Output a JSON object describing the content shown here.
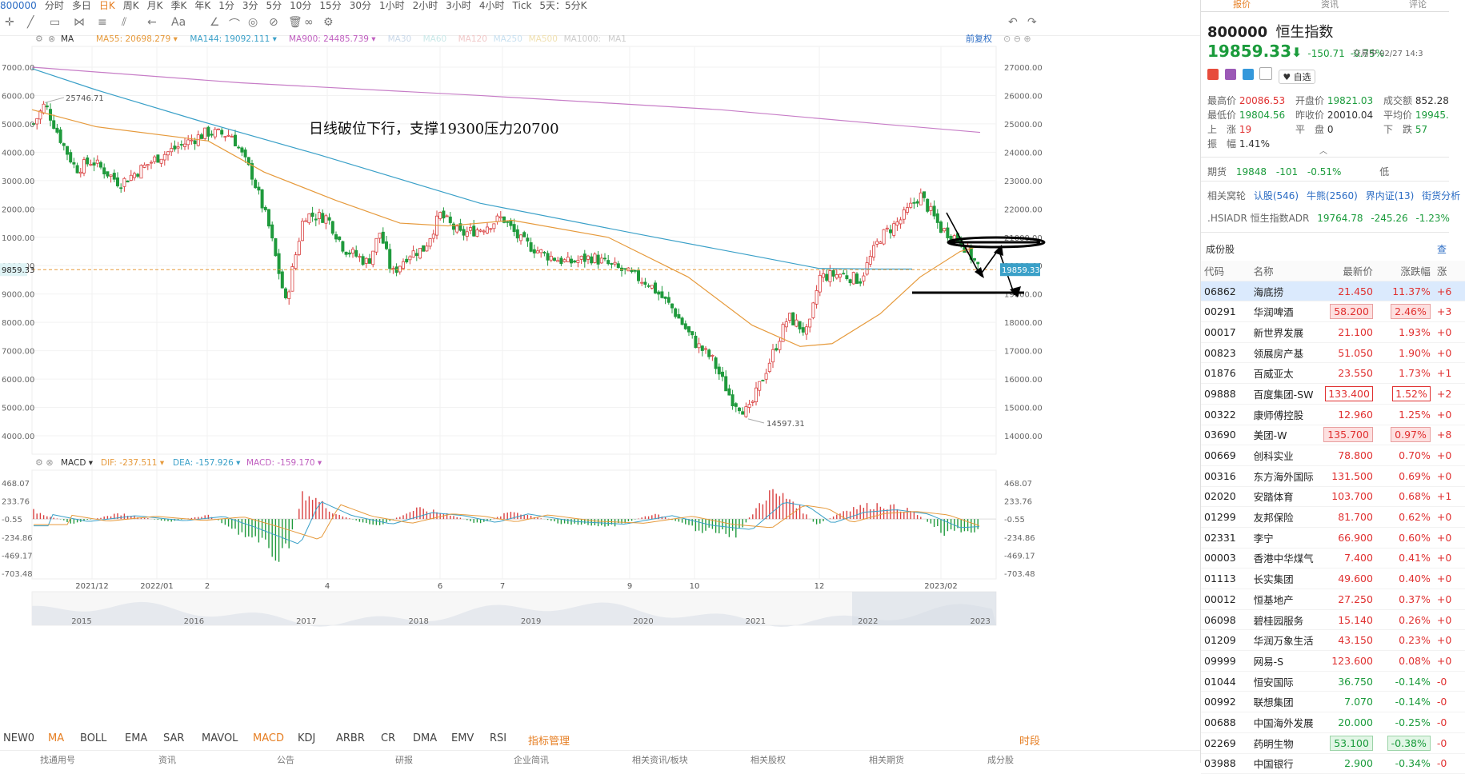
{
  "toolbar": {
    "periods": [
      "800000",
      "分时",
      "多日",
      "日K",
      "周K",
      "月K",
      "季K",
      "年K",
      "1分",
      "3分",
      "5分",
      "10分",
      "15分",
      "30分",
      "1小时",
      "2小时",
      "3小时",
      "4小时",
      "Tick",
      "5天：5分K"
    ],
    "active_period": "日K",
    "right_label": "前复权"
  },
  "main_chart": {
    "ma_labels": [
      {
        "name": "MA",
        "value": "",
        "color": "#333333"
      },
      {
        "name": "MA55:",
        "value": "20698.279",
        "color": "#e69a3c"
      },
      {
        "name": "MA144:",
        "value": "19092.111",
        "color": "#3aa0c8"
      },
      {
        "name": "MA900:",
        "value": "24485.739",
        "color": "#c060c0"
      },
      {
        "name": "MA30",
        "value": "",
        "color": "#c9d8e8"
      },
      {
        "name": "MA60",
        "value": "",
        "color": "#c9e8e8"
      },
      {
        "name": "MA120",
        "value": "",
        "color": "#f0c8c8"
      },
      {
        "name": "MA250",
        "value": "",
        "color": "#c8e0f0"
      },
      {
        "name": "MA500",
        "value": "",
        "color": "#f0e0b0"
      },
      {
        "name": "MA1000:",
        "value": "",
        "color": "#cccccc"
      },
      {
        "name": "MA1",
        "value": "",
        "color": "#cccccc"
      }
    ],
    "annotation": "日线破位下行，支撑19300压力20700",
    "high_label": "25746.71",
    "low_label": "14597.31",
    "current_price_tag": "19859.33",
    "y_ticks": [
      "27000.00",
      "26000.00",
      "25000.00",
      "24000.00",
      "23000.00",
      "22000.00",
      "21000.00",
      "20000.00",
      "19000.00",
      "18000.00",
      "17000.00",
      "16000.00",
      "15000.00",
      "14000.00"
    ],
    "x_ticks": [
      "2021/12",
      "2022/01",
      "2",
      "4",
      "6",
      "7",
      "9",
      "10",
      "12",
      "2023/02"
    ],
    "overview_years": [
      "2015",
      "2016",
      "2017",
      "2018",
      "2019",
      "2020",
      "2021",
      "2022",
      "2023"
    ]
  },
  "macd": {
    "label": "MACD",
    "dif": "DIF: -237.511",
    "dea": "DEA: -157.926",
    "macd": "MACD: -159.170",
    "y_ticks": [
      "468.07",
      "233.76",
      "-0.55",
      "-234.86",
      "-469.17",
      "-703.48"
    ]
  },
  "indicators": [
    "NEW0",
    "MA",
    "BOLL",
    "EMA",
    "SAR",
    "MAVOL",
    "MACD",
    "KDJ",
    "ARBR",
    "CR",
    "DMA",
    "EMV",
    "RSI",
    "指标管理"
  ],
  "indicators_right": "时段",
  "bottom_strip": [
    "找通用号",
    "资讯",
    "公告",
    "研报",
    "企业简讯",
    "相关资讯/板块",
    "相关股权",
    "相关期货",
    "成分股"
  ],
  "chart_data": {
    "type": "candlestick",
    "title": "",
    "y_range": [
      14000,
      27000
    ],
    "x_range": [
      "2021/11",
      "2023/02"
    ],
    "approx_path": [
      {
        "x": "2021/11",
        "close": 25000
      },
      {
        "x": "2021/12",
        "close": 23500
      },
      {
        "x": "2022/01",
        "close": 24000
      },
      {
        "x": "2022/02",
        "close": 24500
      },
      {
        "x": "2022/03",
        "close": 19000
      },
      {
        "x": "2022/04",
        "close": 21000
      },
      {
        "x": "2022/05",
        "close": 20500
      },
      {
        "x": "2022/06",
        "close": 21800
      },
      {
        "x": "2022/07",
        "close": 20500
      },
      {
        "x": "2022/08",
        "close": 19800
      },
      {
        "x": "2022/09",
        "close": 18000
      },
      {
        "x": "2022/10",
        "close": 15500
      },
      {
        "x": "2022/11",
        "close": 17500
      },
      {
        "x": "2022/12",
        "close": 19700
      },
      {
        "x": "2023/01",
        "close": 22500
      },
      {
        "x": "2023/02",
        "close": 19859
      }
    ]
  },
  "quote": {
    "code": "800000",
    "name": "恒生指数",
    "price": "19859.33",
    "change": "-150.71",
    "change_pct": "-0.75%",
    "status": "交易中 02/27 14:3",
    "watch": "自选",
    "high_label": "最高价",
    "high": "20086.53",
    "open_label": "开盘价",
    "open": "19821.03",
    "volume_label": "成交额",
    "volume": "852.28",
    "low_label": "最低价",
    "low": "19804.56",
    "prev_label": "昨收价",
    "prev": "20010.04",
    "avg_label": "平均价",
    "avg": "19945.",
    "up_label": "上　涨",
    "up": "19",
    "flat_label": "平　盘",
    "flat": "0",
    "down_label": "下　跌",
    "down": "57",
    "amp_label": "振　幅",
    "amp": "1.41%",
    "futures_label": "期货",
    "futures_price": "19848",
    "futures_change": "-101",
    "futures_pct": "-0.51%",
    "futures_extra": "低",
    "related_label": "相关窝轮",
    "related_links": [
      "认股(546)",
      "牛熊(2560)",
      "界内证(13)",
      "街货分析"
    ],
    "adr_label": ".HSIADR 恒生指数ADR",
    "adr_price": "19764.78",
    "adr_change": "-245.26",
    "adr_pct": "-1.23%",
    "constituents_label": "成份股",
    "constituents_more": "查"
  },
  "table": {
    "headers": [
      "代码",
      "名称",
      "最新价",
      "涨跌幅",
      "涨"
    ],
    "rows": [
      {
        "code": "06862",
        "name": "海底捞",
        "price": "21.450",
        "pct": "11.37%",
        "extra": "+6",
        "style": "highlight"
      },
      {
        "code": "00291",
        "name": "华润啤酒",
        "price": "58.200",
        "pct": "2.46%",
        "extra": "+3",
        "style": "redbg"
      },
      {
        "code": "00017",
        "name": "新世界发展",
        "price": "21.100",
        "pct": "1.93%",
        "extra": "+0",
        "style": ""
      },
      {
        "code": "00823",
        "name": "领展房产基",
        "price": "51.050",
        "pct": "1.90%",
        "extra": "+0",
        "style": ""
      },
      {
        "code": "01876",
        "name": "百威亚太",
        "price": "23.550",
        "pct": "1.73%",
        "extra": "+1",
        "style": ""
      },
      {
        "code": "09888",
        "name": "百度集团-SW",
        "price": "133.400",
        "pct": "1.52%",
        "extra": "+2",
        "style": "greenbox"
      },
      {
        "code": "00322",
        "name": "康师傅控股",
        "price": "12.960",
        "pct": "1.25%",
        "extra": "+0",
        "style": ""
      },
      {
        "code": "03690",
        "name": "美团-W",
        "price": "135.700",
        "pct": "0.97%",
        "extra": "+8",
        "style": "redbg"
      },
      {
        "code": "00669",
        "name": "创科实业",
        "price": "78.800",
        "pct": "0.70%",
        "extra": "+0",
        "style": ""
      },
      {
        "code": "00316",
        "name": "东方海外国际",
        "price": "131.500",
        "pct": "0.69%",
        "extra": "+0",
        "style": ""
      },
      {
        "code": "02020",
        "name": "安踏体育",
        "price": "103.700",
        "pct": "0.68%",
        "extra": "+1",
        "style": ""
      },
      {
        "code": "01299",
        "name": "友邦保险",
        "price": "81.700",
        "pct": "0.62%",
        "extra": "+0",
        "style": ""
      },
      {
        "code": "02331",
        "name": "李宁",
        "price": "66.900",
        "pct": "0.60%",
        "extra": "+0",
        "style": ""
      },
      {
        "code": "00003",
        "name": "香港中华煤气",
        "price": "7.400",
        "pct": "0.41%",
        "extra": "+0",
        "style": ""
      },
      {
        "code": "01113",
        "name": "长实集团",
        "price": "49.600",
        "pct": "0.40%",
        "extra": "+0",
        "style": ""
      },
      {
        "code": "00012",
        "name": "恒基地产",
        "price": "27.250",
        "pct": "0.37%",
        "extra": "+0",
        "style": ""
      },
      {
        "code": "06098",
        "name": "碧桂园服务",
        "price": "15.140",
        "pct": "0.26%",
        "extra": "+0",
        "style": ""
      },
      {
        "code": "01209",
        "name": "华润万象生活",
        "price": "43.150",
        "pct": "0.23%",
        "extra": "+0",
        "style": ""
      },
      {
        "code": "09999",
        "name": "网易-S",
        "price": "123.600",
        "pct": "0.08%",
        "extra": "+0",
        "style": ""
      },
      {
        "code": "01044",
        "name": "恒安国际",
        "price": "36.750",
        "pct": "-0.14%",
        "extra": "-0",
        "style": ""
      },
      {
        "code": "00992",
        "name": "联想集团",
        "price": "7.070",
        "pct": "-0.14%",
        "extra": "-0",
        "style": ""
      },
      {
        "code": "00688",
        "name": "中国海外发展",
        "price": "20.000",
        "pct": "-0.25%",
        "extra": "-0",
        "style": ""
      },
      {
        "code": "02269",
        "name": "药明生物",
        "price": "53.100",
        "pct": "-0.38%",
        "extra": "-0",
        "style": "greenbg"
      },
      {
        "code": "03988",
        "name": "中国银行",
        "price": "2.900",
        "pct": "-0.34%",
        "extra": "-0",
        "style": ""
      }
    ]
  }
}
